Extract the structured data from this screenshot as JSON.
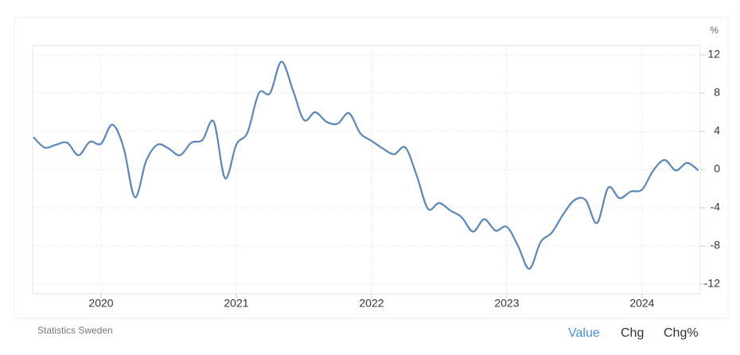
{
  "chart_data": {
    "type": "line",
    "unit": "%",
    "x": [
      2019.5,
      2019.5833,
      2019.6667,
      2019.75,
      2019.8333,
      2019.9167,
      2020.0,
      2020.0833,
      2020.1667,
      2020.25,
      2020.3333,
      2020.4167,
      2020.5,
      2020.5833,
      2020.6667,
      2020.75,
      2020.8333,
      2020.9167,
      2021.0,
      2021.0833,
      2021.1667,
      2021.25,
      2021.3333,
      2021.4167,
      2021.5,
      2021.5833,
      2021.6667,
      2021.75,
      2021.8333,
      2021.9167,
      2022.0,
      2022.0833,
      2022.1667,
      2022.25,
      2022.3333,
      2022.4167,
      2022.5,
      2022.5833,
      2022.6667,
      2022.75,
      2022.8333,
      2022.9167,
      2023.0,
      2023.0833,
      2023.1667,
      2023.25,
      2023.3333,
      2023.4167,
      2023.5,
      2023.5833,
      2023.6667,
      2023.75,
      2023.8333,
      2023.9167,
      2024.0,
      2024.0833,
      2024.1667,
      2024.25,
      2024.3333,
      2024.4167
    ],
    "series": [
      {
        "name": "Value",
        "color": "#5b87b8",
        "values": [
          3.4,
          2.3,
          2.6,
          2.8,
          1.5,
          2.9,
          2.7,
          4.7,
          2.3,
          -2.9,
          0.9,
          2.6,
          2.2,
          1.5,
          2.8,
          3.1,
          5.0,
          -0.9,
          2.6,
          3.9,
          8.0,
          8.0,
          11.3,
          8.4,
          5.2,
          6.0,
          5.0,
          4.8,
          5.9,
          3.8,
          3.0,
          2.2,
          1.6,
          2.3,
          -0.6,
          -4.1,
          -3.5,
          -4.3,
          -5.0,
          -6.5,
          -5.2,
          -6.4,
          -6.0,
          -8.0,
          -10.4,
          -7.6,
          -6.6,
          -4.7,
          -3.2,
          -3.2,
          -5.6,
          -1.9,
          -3.0,
          -2.3,
          -2.1,
          -0.1,
          1.0,
          -0.1,
          0.7,
          -0.1
        ]
      }
    ],
    "xlim": [
      2019.494,
      2024.43
    ],
    "xticks": [
      2020,
      2021,
      2022,
      2023,
      2024
    ],
    "ylim": [
      -13,
      13
    ],
    "yticks": [
      12,
      8,
      4,
      0,
      -4,
      -8,
      -12
    ],
    "grid": true
  },
  "footer": {
    "source": "Statistics Sweden",
    "tabs": [
      "Value",
      "Chg",
      "Chg%"
    ]
  }
}
